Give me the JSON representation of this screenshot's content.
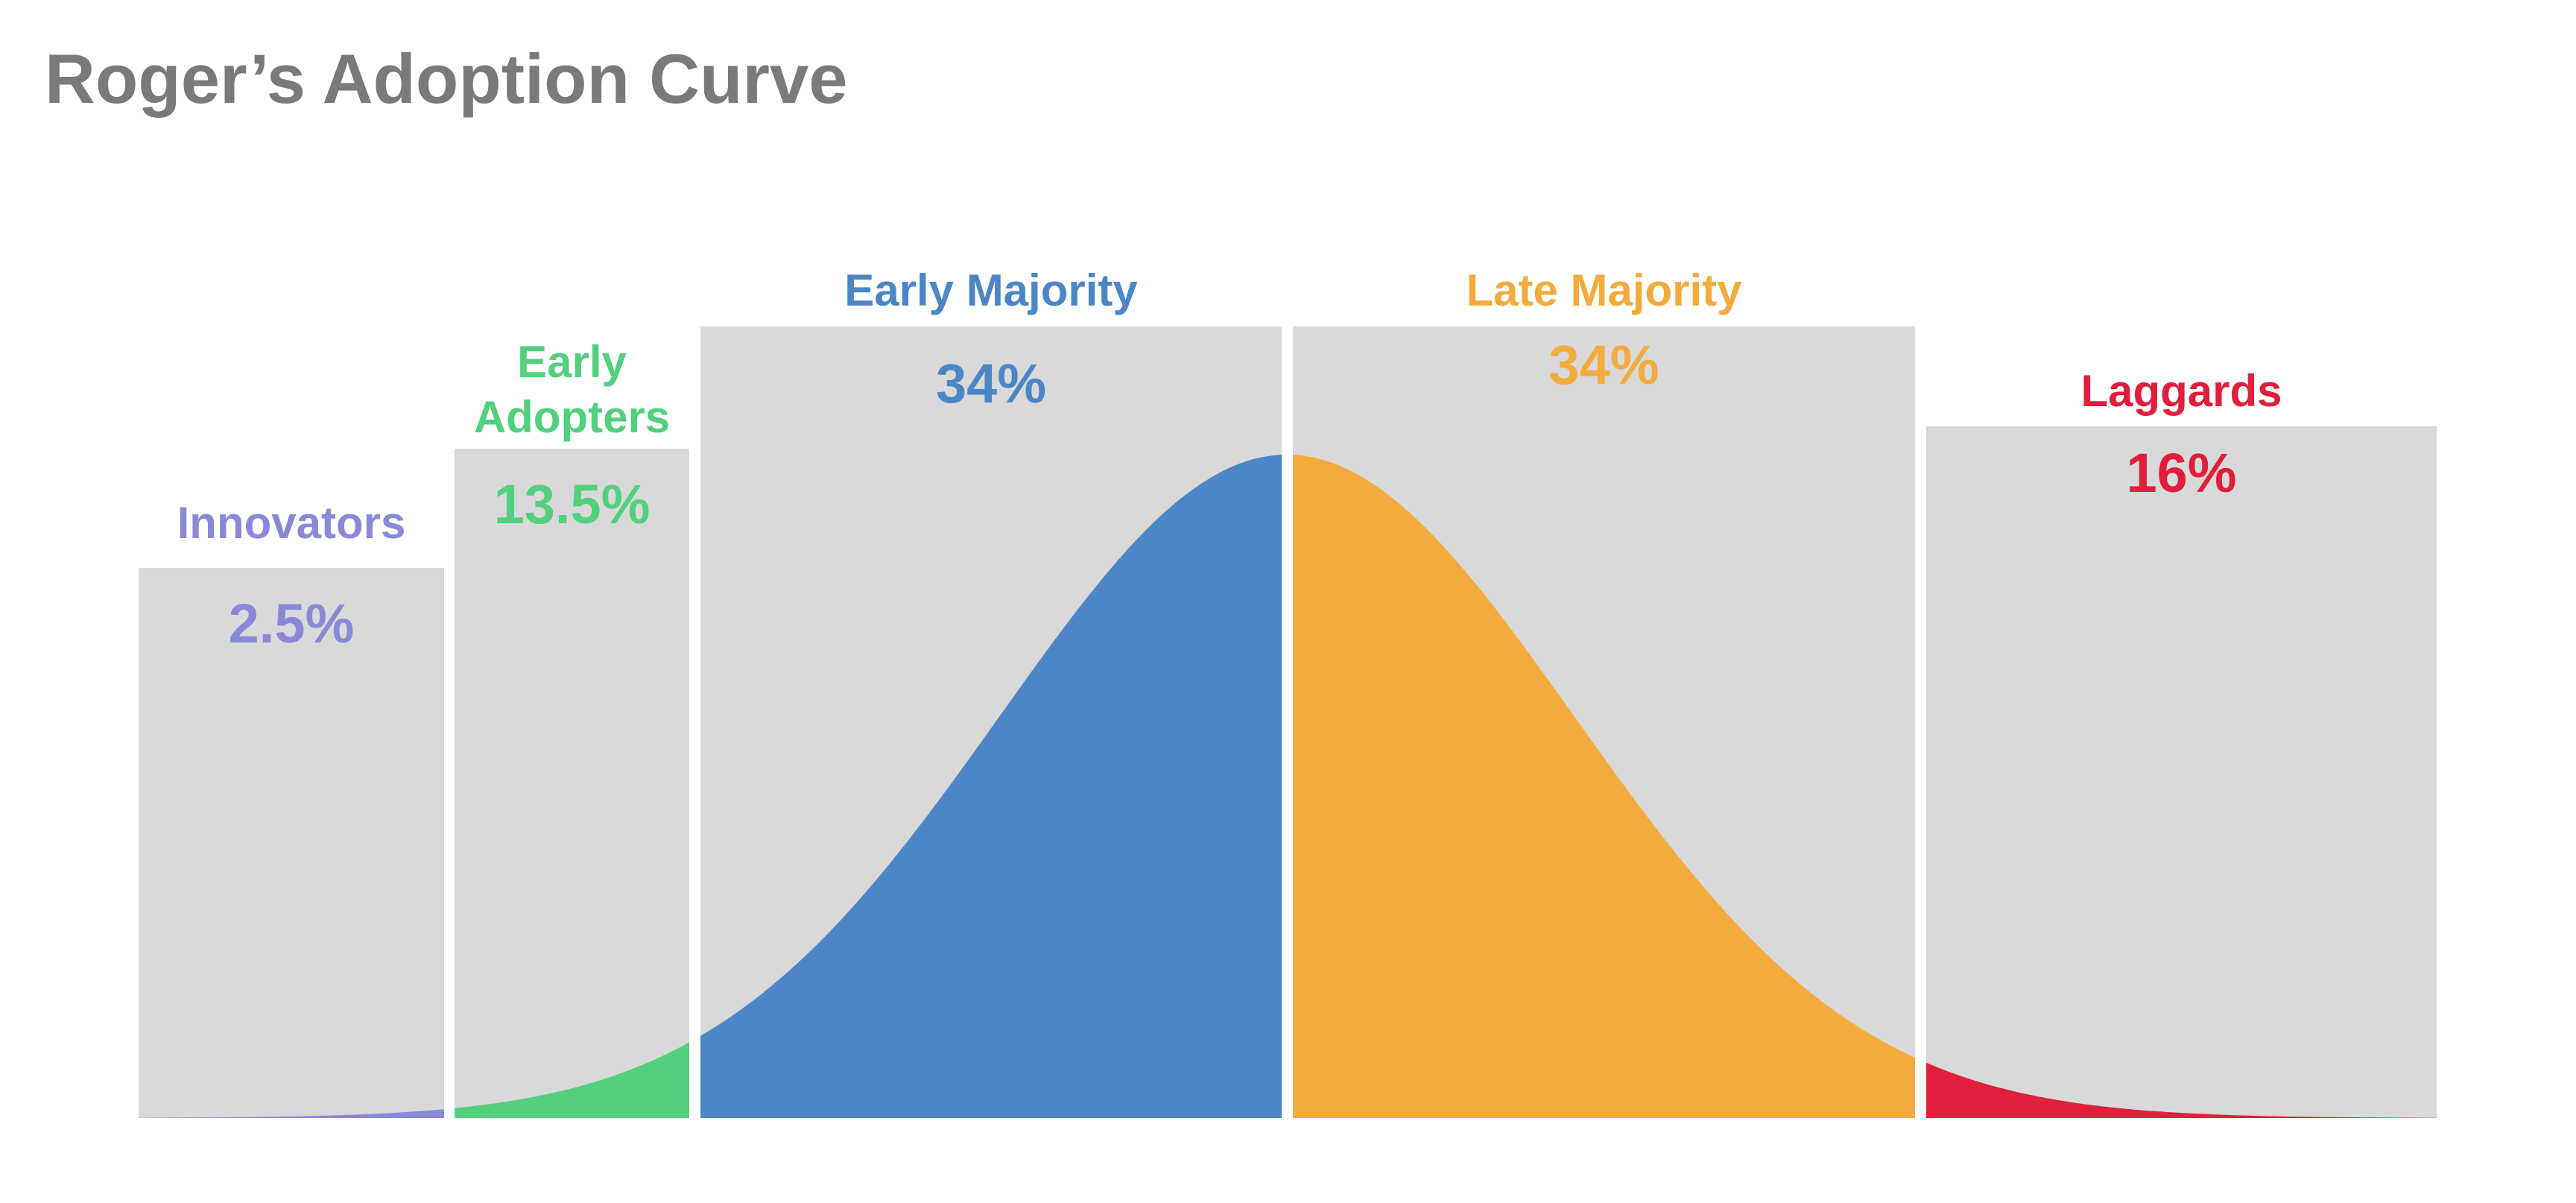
{
  "title": "Roger’s Adoption Curve",
  "chart_data": {
    "type": "area",
    "title": "Roger’s Adoption Curve",
    "xlabel": "",
    "ylabel": "",
    "grid": false,
    "distribution": "normal",
    "segments": [
      {
        "label_lines": [
          "Innovators"
        ],
        "value": "2.5%",
        "share": 2.5,
        "color": "#8a89d8",
        "sd_range": [
          -3.3,
          -2
        ]
      },
      {
        "label_lines": [
          "Early",
          "Adopters"
        ],
        "value": "13.5%",
        "share": 13.5,
        "color": "#52d07e",
        "sd_range": [
          -2,
          -1
        ]
      },
      {
        "label_lines": [
          "Early Majority"
        ],
        "value": "34%",
        "share": 34,
        "color": "#4c86c6",
        "sd_range": [
          -1,
          0
        ]
      },
      {
        "label_lines": [
          "Late Majority"
        ],
        "value": "34%",
        "share": 34,
        "color": "#f3ab3d",
        "sd_range": [
          0,
          1
        ]
      },
      {
        "label_lines": [
          "Laggards"
        ],
        "value": "16%",
        "share": 16,
        "color": "#e11f3c",
        "sd_range": [
          1,
          3.3
        ]
      }
    ],
    "background_panel_color": "#d9d9d9"
  }
}
